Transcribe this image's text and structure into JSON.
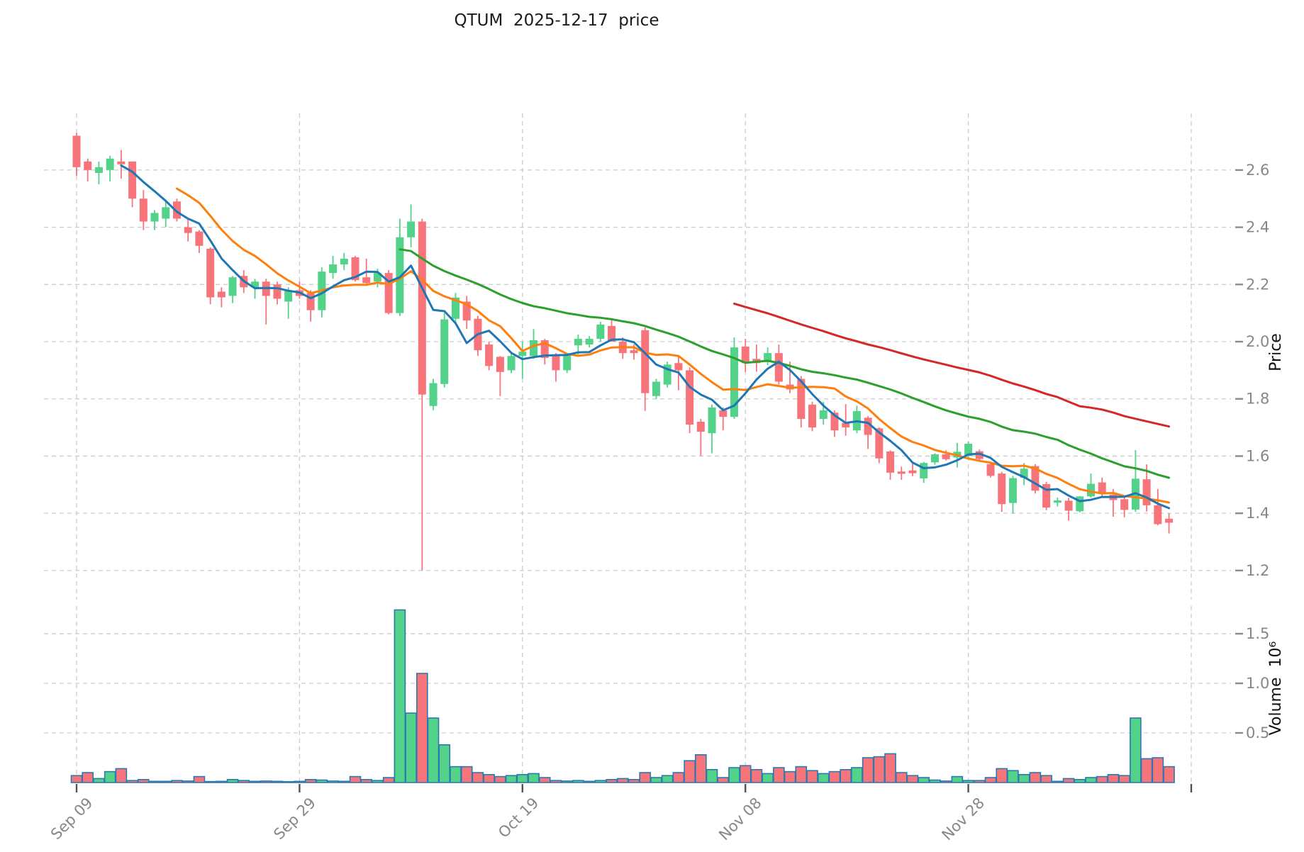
{
  "title": "QTUM  2025-12-17  price",
  "chart_data": {
    "type": "candlestick",
    "symbol": "QTUM",
    "as_of_date": "2025-12-17",
    "title": "QTUM  2025-12-17  price",
    "grid": true,
    "price_axis": {
      "label": "Price",
      "ticks": [
        1.2,
        1.4,
        1.6,
        1.8,
        2.0,
        2.2,
        2.4,
        2.6
      ],
      "range": [
        1.098,
        2.798
      ],
      "side": "right"
    },
    "volume_axis": {
      "label": "Volume  10⁶",
      "ticks": [
        0.5,
        1.0,
        1.5
      ],
      "range": [
        0,
        1.779
      ],
      "side": "right"
    },
    "x_ticks": [
      {
        "index": 0,
        "label": "Sep 09"
      },
      {
        "index": 20,
        "label": "Sep 29"
      },
      {
        "index": 40,
        "label": "Oct 19"
      },
      {
        "index": 60,
        "label": "Nov 08"
      },
      {
        "index": 80,
        "label": "Nov 28"
      },
      {
        "index": 100,
        "label": ""
      }
    ],
    "moving_averages": [
      {
        "period": 60,
        "color": "#d62728"
      },
      {
        "period": 30,
        "color": "#2ca02c"
      },
      {
        "period": 10,
        "color": "#ff7f0e"
      },
      {
        "period": 5,
        "color": "#1f77b4"
      }
    ],
    "candle_keys": [
      "date",
      "open",
      "high",
      "low",
      "close",
      "volume_millions"
    ],
    "candles": [
      [
        "Sep 09",
        2.72,
        2.73,
        2.58,
        2.61,
        0.07
      ],
      [
        "Sep 10",
        2.63,
        2.64,
        2.56,
        2.6,
        0.1
      ],
      [
        "Sep 11",
        2.59,
        2.63,
        2.55,
        2.61,
        0.04
      ],
      [
        "Sep 12",
        2.6,
        2.65,
        2.56,
        2.64,
        0.11
      ],
      [
        "Sep 13",
        2.63,
        2.67,
        2.57,
        2.62,
        0.14
      ],
      [
        "Sep 14",
        2.63,
        2.63,
        2.47,
        2.5,
        0.02
      ],
      [
        "Sep 15",
        2.5,
        2.53,
        2.39,
        2.42,
        0.03
      ],
      [
        "Sep 16",
        2.42,
        2.46,
        2.39,
        2.45,
        0.012
      ],
      [
        "Sep 17",
        2.43,
        2.49,
        2.4,
        2.47,
        0.012
      ],
      [
        "Sep 18",
        2.49,
        2.5,
        2.42,
        2.43,
        0.02
      ],
      [
        "Sep 19",
        2.4,
        2.43,
        2.35,
        2.38,
        0.015
      ],
      [
        "Sep 20",
        2.385,
        2.39,
        2.31,
        2.335,
        0.06
      ],
      [
        "Sep 21",
        2.325,
        2.33,
        2.13,
        2.155,
        0.01
      ],
      [
        "Sep 22",
        2.175,
        2.19,
        2.12,
        2.155,
        0.012
      ],
      [
        "Sep 23",
        2.16,
        2.23,
        2.135,
        2.225,
        0.03
      ],
      [
        "Sep 24",
        2.23,
        2.25,
        2.17,
        2.19,
        0.02
      ],
      [
        "Sep 25",
        2.19,
        2.22,
        2.15,
        2.21,
        0.012
      ],
      [
        "Sep 26",
        2.21,
        2.22,
        2.06,
        2.16,
        0.015
      ],
      [
        "Sep 27",
        2.2,
        2.21,
        2.13,
        2.15,
        0.012
      ],
      [
        "Sep 28",
        2.14,
        2.19,
        2.08,
        2.18,
        0.008
      ],
      [
        "Sep 29",
        2.18,
        2.21,
        2.15,
        2.16,
        0.012
      ],
      [
        "Sep 30",
        2.17,
        2.18,
        2.07,
        2.11,
        0.03
      ],
      [
        "Oct 01",
        2.11,
        2.26,
        2.085,
        2.245,
        0.025
      ],
      [
        "Oct 02",
        2.24,
        2.3,
        2.22,
        2.27,
        0.015
      ],
      [
        "Oct 03",
        2.27,
        2.31,
        2.25,
        2.29,
        0.012
      ],
      [
        "Oct 04",
        2.295,
        2.3,
        2.21,
        2.215,
        0.06
      ],
      [
        "Oct 05",
        2.225,
        2.29,
        2.2,
        2.205,
        0.03
      ],
      [
        "Oct 06",
        2.21,
        2.255,
        2.19,
        2.24,
        0.02
      ],
      [
        "Oct 07",
        2.24,
        2.25,
        2.095,
        2.1,
        0.05
      ],
      [
        "Oct 08",
        2.1,
        2.43,
        2.09,
        2.365,
        1.74
      ],
      [
        "Oct 09",
        2.365,
        2.48,
        2.33,
        2.42,
        0.7
      ],
      [
        "Oct 10",
        2.42,
        2.43,
        1.2,
        1.815,
        1.1
      ],
      [
        "Oct 11",
        1.775,
        1.87,
        1.76,
        1.855,
        0.65
      ],
      [
        "Oct 12",
        1.852,
        2.1,
        1.84,
        2.078,
        0.38
      ],
      [
        "Oct 13",
        2.08,
        2.17,
        2.06,
        2.154,
        0.16
      ],
      [
        "Oct 14",
        2.14,
        2.16,
        2.045,
        2.074,
        0.16
      ],
      [
        "Oct 15",
        2.08,
        2.09,
        1.95,
        1.97,
        0.1
      ],
      [
        "Oct 16",
        1.99,
        2.0,
        1.9,
        1.915,
        0.08
      ],
      [
        "Oct 17",
        1.947,
        1.95,
        1.81,
        1.894,
        0.06
      ],
      [
        "Oct 18",
        1.9,
        1.96,
        1.89,
        1.95,
        0.07
      ],
      [
        "Oct 19",
        1.95,
        2.0,
        1.87,
        1.965,
        0.08
      ],
      [
        "Oct 20",
        1.95,
        2.044,
        1.94,
        2.005,
        0.09
      ],
      [
        "Oct 21",
        2.005,
        2.01,
        1.92,
        1.943,
        0.05
      ],
      [
        "Oct 22",
        1.95,
        1.96,
        1.86,
        1.9,
        0.02
      ],
      [
        "Oct 23",
        1.9,
        1.96,
        1.89,
        1.955,
        0.015
      ],
      [
        "Oct 24",
        1.987,
        2.025,
        1.955,
        2.01,
        0.02
      ],
      [
        "Oct 25",
        1.99,
        2.02,
        1.98,
        2.01,
        0.012
      ],
      [
        "Oct 26",
        2.01,
        2.07,
        2.0,
        2.06,
        0.02
      ],
      [
        "Oct 27",
        2.055,
        2.08,
        2.0,
        2.0,
        0.03
      ],
      [
        "Oct 28",
        2.0,
        2.015,
        1.94,
        1.96,
        0.04
      ],
      [
        "Oct 29",
        1.97,
        1.99,
        1.937,
        1.96,
        0.03
      ],
      [
        "Oct 30",
        2.04,
        2.05,
        1.758,
        1.82,
        0.1
      ],
      [
        "Oct 31",
        1.81,
        1.87,
        1.8,
        1.86,
        0.05
      ],
      [
        "Nov 01",
        1.85,
        1.93,
        1.84,
        1.92,
        0.07
      ],
      [
        "Nov 02",
        1.925,
        1.95,
        1.83,
        1.9,
        0.1
      ],
      [
        "Nov 03",
        1.9,
        1.91,
        1.68,
        1.71,
        0.22
      ],
      [
        "Nov 04",
        1.72,
        1.73,
        1.6,
        1.685,
        0.28
      ],
      [
        "Nov 05",
        1.68,
        1.78,
        1.61,
        1.77,
        0.13
      ],
      [
        "Nov 06",
        1.76,
        1.77,
        1.69,
        1.737,
        0.05
      ],
      [
        "Nov 07",
        1.737,
        2.015,
        1.73,
        1.98,
        0.15
      ],
      [
        "Nov 08",
        1.983,
        2.01,
        1.894,
        1.925,
        0.17
      ],
      [
        "Nov 09",
        1.94,
        1.99,
        1.895,
        1.925,
        0.13
      ],
      [
        "Nov 10",
        1.93,
        1.98,
        1.918,
        1.96,
        0.09
      ],
      [
        "Nov 11",
        1.96,
        1.99,
        1.85,
        1.86,
        0.15
      ],
      [
        "Nov 12",
        1.85,
        1.93,
        1.82,
        1.833,
        0.11
      ],
      [
        "Nov 13",
        1.87,
        1.88,
        1.7,
        1.73,
        0.16
      ],
      [
        "Nov 14",
        1.78,
        1.79,
        1.687,
        1.7,
        0.12
      ],
      [
        "Nov 15",
        1.73,
        1.79,
        1.71,
        1.76,
        0.09
      ],
      [
        "Nov 16",
        1.752,
        1.76,
        1.667,
        1.69,
        0.11
      ],
      [
        "Nov 17",
        1.716,
        1.782,
        1.671,
        1.7,
        0.13
      ],
      [
        "Nov 18",
        1.69,
        1.776,
        1.68,
        1.757,
        0.15
      ],
      [
        "Nov 19",
        1.734,
        1.74,
        1.625,
        1.674,
        0.25
      ],
      [
        "Nov 20",
        1.697,
        1.7,
        1.575,
        1.592,
        0.26
      ],
      [
        "Nov 21",
        1.616,
        1.62,
        1.517,
        1.542,
        0.29
      ],
      [
        "Nov 22",
        1.546,
        1.563,
        1.517,
        1.538,
        0.1
      ],
      [
        "Nov 23",
        1.55,
        1.575,
        1.53,
        1.54,
        0.07
      ],
      [
        "Nov 24",
        1.522,
        1.58,
        1.506,
        1.576,
        0.05
      ],
      [
        "Nov 25",
        1.578,
        1.61,
        1.57,
        1.606,
        0.025
      ],
      [
        "Nov 26",
        1.606,
        1.62,
        1.585,
        1.589,
        0.015
      ],
      [
        "Nov 27",
        1.595,
        1.646,
        1.56,
        1.615,
        0.06
      ],
      [
        "Nov 28",
        1.6,
        1.65,
        1.59,
        1.643,
        0.02
      ],
      [
        "Nov 29",
        1.617,
        1.623,
        1.585,
        1.59,
        0.02
      ],
      [
        "Nov 30",
        1.572,
        1.58,
        1.525,
        1.531,
        0.05
      ],
      [
        "Dec 01",
        1.539,
        1.545,
        1.405,
        1.432,
        0.14
      ],
      [
        "Dec 02",
        1.436,
        1.531,
        1.399,
        1.523,
        0.12
      ],
      [
        "Dec 03",
        1.524,
        1.576,
        1.498,
        1.556,
        0.08
      ],
      [
        "Dec 04",
        1.565,
        1.572,
        1.469,
        1.479,
        0.1
      ],
      [
        "Dec 05",
        1.502,
        1.51,
        1.411,
        1.42,
        0.07
      ],
      [
        "Dec 06",
        1.437,
        1.455,
        1.424,
        1.445,
        0.012
      ],
      [
        "Dec 07",
        1.444,
        1.454,
        1.374,
        1.409,
        0.04
      ],
      [
        "Dec 08",
        1.407,
        1.46,
        1.403,
        1.459,
        0.03
      ],
      [
        "Dec 09",
        1.459,
        1.539,
        1.455,
        1.503,
        0.05
      ],
      [
        "Dec 10",
        1.508,
        1.525,
        1.461,
        1.469,
        0.06
      ],
      [
        "Dec 11",
        1.465,
        1.485,
        1.388,
        1.446,
        0.08
      ],
      [
        "Dec 12",
        1.449,
        1.455,
        1.386,
        1.412,
        0.07
      ],
      [
        "Dec 13",
        1.413,
        1.621,
        1.405,
        1.521,
        0.65
      ],
      [
        "Dec 14",
        1.519,
        1.571,
        1.406,
        1.428,
        0.24
      ],
      [
        "Dec 15",
        1.428,
        1.485,
        1.358,
        1.362,
        0.25
      ],
      [
        "Dec 16",
        1.381,
        1.4,
        1.329,
        1.367,
        0.16
      ]
    ]
  },
  "colors": {
    "up": "#53d28a",
    "down": "#f8747b",
    "volume_edge": "#2a7ab0",
    "grid": "#cdcdcd",
    "tick_label": "#878787",
    "x_tick_mark": "#4f5559",
    "y_tick_mark": "#8c8c8c",
    "title_text": "#1b1b1b",
    "axis_label": "#111111",
    "background": "#ffffff"
  }
}
